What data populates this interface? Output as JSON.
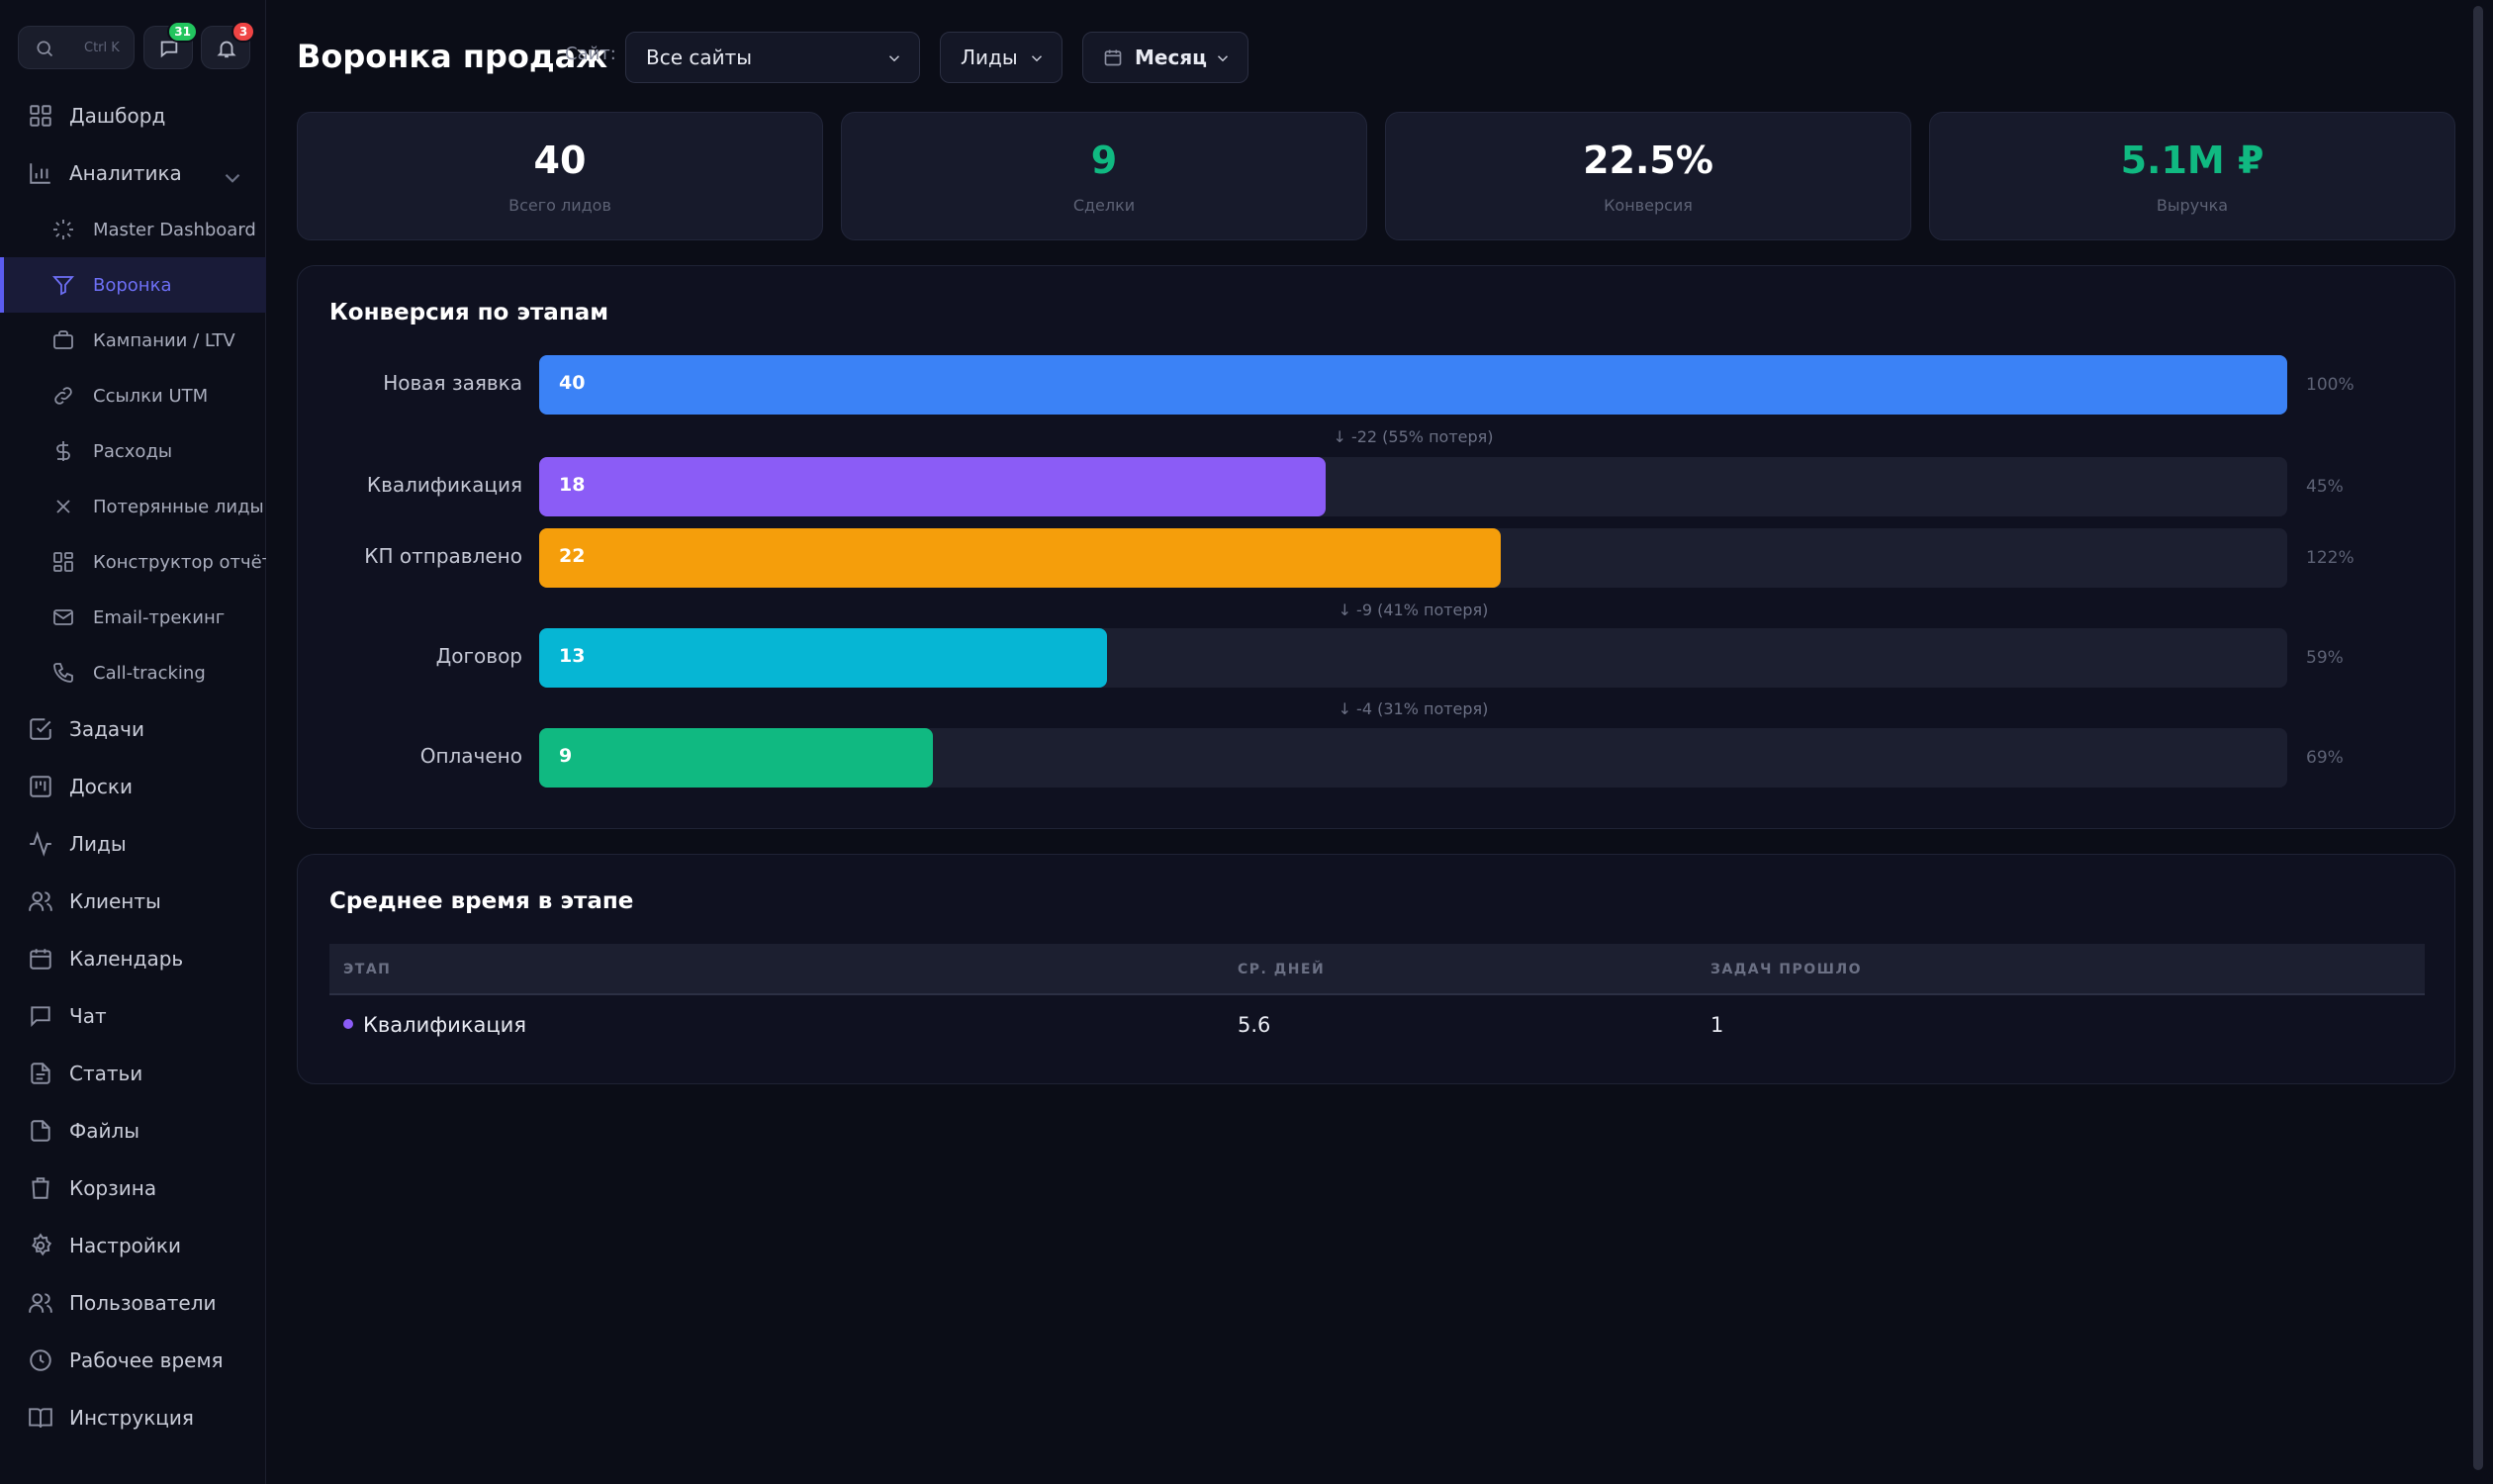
{
  "sidebar": {
    "search_shortcut": "Ctrl K",
    "messages_badge": "31",
    "notifications_badge": "3",
    "items": [
      {
        "label": "Дашборд"
      },
      {
        "label": "Аналитика"
      },
      {
        "label": "Master Dashboard"
      },
      {
        "label": "Воронка"
      },
      {
        "label": "Кампании / LTV"
      },
      {
        "label": "Ссылки UTM"
      },
      {
        "label": "Расходы"
      },
      {
        "label": "Потерянные лиды"
      },
      {
        "label": "Конструктор отчётов"
      },
      {
        "label": "Email-трекинг"
      },
      {
        "label": "Call-tracking"
      },
      {
        "label": "Задачи"
      },
      {
        "label": "Доски"
      },
      {
        "label": "Лиды"
      },
      {
        "label": "Клиенты"
      },
      {
        "label": "Календарь"
      },
      {
        "label": "Чат"
      },
      {
        "label": "Статьи"
      },
      {
        "label": "Файлы"
      },
      {
        "label": "Корзина"
      },
      {
        "label": "Настройки"
      },
      {
        "label": "Пользователи"
      },
      {
        "label": "Рабочее время"
      },
      {
        "label": "Инструкция"
      }
    ]
  },
  "header": {
    "title": "Воронка продаж",
    "site_label": "Сайт:",
    "site_value": "Все сайты",
    "entity_value": "Лиды",
    "period_value": "Месяц"
  },
  "kpis": [
    {
      "value": "40",
      "label": "Всего лидов",
      "color": "#ffffff"
    },
    {
      "value": "9",
      "label": "Сделки",
      "color": "#10b981"
    },
    {
      "value": "22.5%",
      "label": "Конверсия",
      "color": "#ffffff"
    },
    {
      "value": "5.1M ₽",
      "label": "Выручка",
      "color": "#10b981"
    }
  ],
  "funnel": {
    "title": "Конверсия по этапам",
    "stages": [
      {
        "name": "Новая заявка",
        "value": "40",
        "percent": "100%",
        "color": "#3b82f6"
      },
      {
        "name": "Квалификация",
        "value": "18",
        "percent": "45%",
        "color": "#8b5cf6"
      },
      {
        "name": "КП отправлено",
        "value": "22",
        "percent": "122%",
        "color": "#f59e0b"
      },
      {
        "name": "Договор",
        "value": "13",
        "percent": "59%",
        "color": "#06b6d4"
      },
      {
        "name": "Оплачено",
        "value": "9",
        "percent": "69%",
        "color": "#10b981"
      }
    ],
    "losses": [
      "↓ -22 (55% потеря)",
      "↓ -9 (41% потеря)",
      "↓ -4 (31% потеря)"
    ]
  },
  "stage_time": {
    "title": "Среднее время в этапе",
    "columns": [
      "ЭТАП",
      "СР. ДНЕЙ",
      "ЗАДАЧ ПРОШЛО"
    ],
    "rows": [
      {
        "stage": "Квалификация",
        "avg_days": "5.6",
        "tasks": "1",
        "color": "#8b5cf6"
      }
    ]
  }
}
